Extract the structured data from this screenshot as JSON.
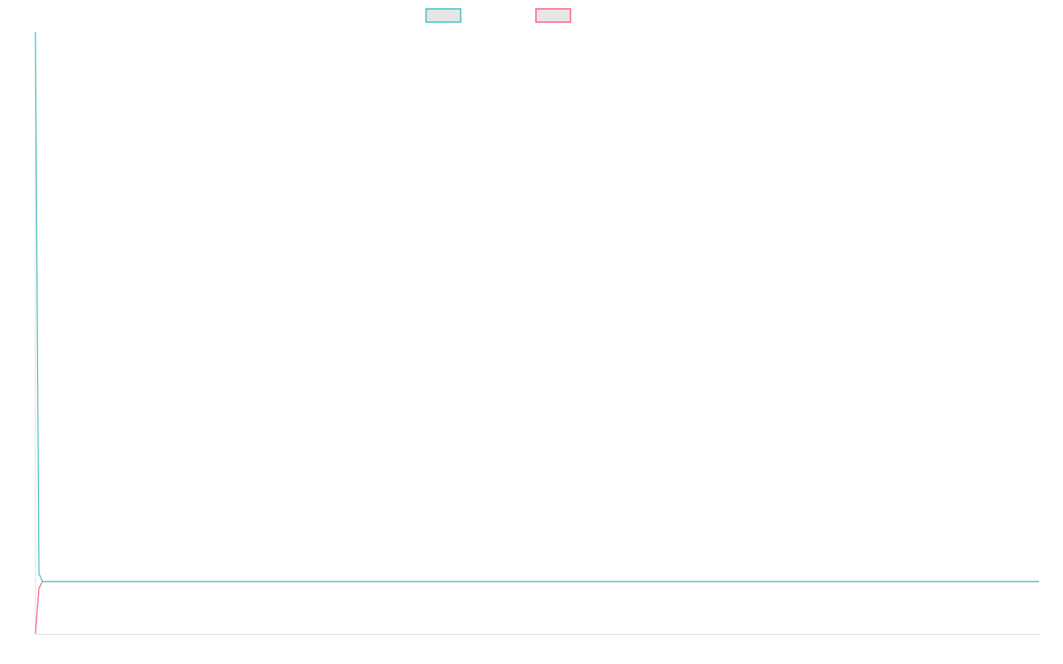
{
  "chart_data": {
    "type": "line",
    "title": "",
    "xlabel": "",
    "ylabel": "",
    "xlim": [
      0,
      283
    ],
    "ylim": [
      0,
      100
    ],
    "grid": false,
    "legend_placement": "top-center",
    "series": [
      {
        "color": "#4bc0c0",
        "x": [
          0,
          1,
          2,
          283
        ],
        "y": [
          100,
          10,
          8.7,
          8.7
        ]
      },
      {
        "color": "#ff6384",
        "x": [
          0,
          1,
          2,
          283
        ],
        "y": [
          0,
          7.6,
          8.7,
          8.7
        ]
      }
    ],
    "axis_color": "#e0e0e0"
  }
}
